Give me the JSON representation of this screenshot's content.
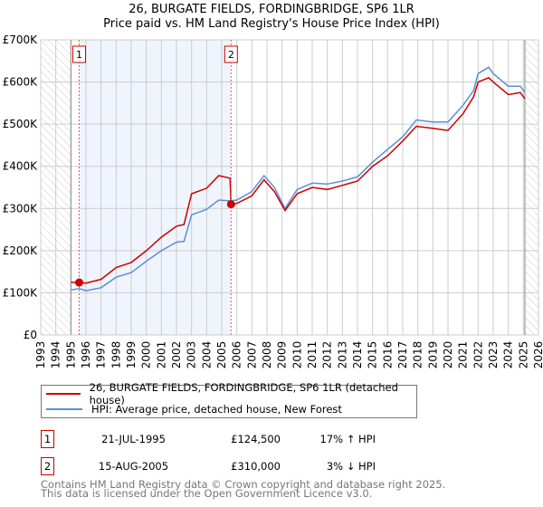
{
  "chart_data": {
    "type": "line",
    "title": "26, BURGATE FIELDS, FORDINGBRIDGE, SP6 1LR",
    "subtitle": "Price paid vs. HM Land Registry's House Price Index (HPI)",
    "xlim": [
      1993,
      2026
    ],
    "ylim": [
      0,
      700000
    ],
    "x_ticks": [
      "1993",
      "1994",
      "1995",
      "1996",
      "1997",
      "1998",
      "1999",
      "2000",
      "2001",
      "2002",
      "2003",
      "2004",
      "2005",
      "2006",
      "2007",
      "2008",
      "2009",
      "2010",
      "2011",
      "2012",
      "2013",
      "2014",
      "2015",
      "2016",
      "2017",
      "2018",
      "2019",
      "2020",
      "2021",
      "2022",
      "2023",
      "2024",
      "2025",
      "2026"
    ],
    "y_ticks": [
      {
        "v": 0,
        "label": "£0"
      },
      {
        "v": 100000,
        "label": "£100K"
      },
      {
        "v": 200000,
        "label": "£200K"
      },
      {
        "v": 300000,
        "label": "£300K"
      },
      {
        "v": 400000,
        "label": "£400K"
      },
      {
        "v": 500000,
        "label": "£500K"
      },
      {
        "v": 600000,
        "label": "£600K"
      },
      {
        "v": 700000,
        "label": "£700K"
      }
    ],
    "grid": true,
    "series": [
      {
        "name": "26, BURGATE FIELDS, FORDINGBRIDGE, SP6 1LR (detached house)",
        "color": "#cc0000",
        "x": [
          1995.0,
          1995.55,
          1996,
          1997,
          1998,
          1999,
          2000,
          2001,
          2002,
          2002.5,
          2003,
          2004,
          2004.8,
          2005.55,
          2005.62,
          2006,
          2007,
          2007.8,
          2008.5,
          2009.2,
          2010,
          2011,
          2012,
          2013,
          2014,
          2015,
          2016,
          2017,
          2017.9,
          2019,
          2020,
          2021,
          2021.7,
          2022,
          2022.7,
          2023,
          2024,
          2024.8,
          2025.1
        ],
        "y": [
          125000,
          124500,
          123000,
          132000,
          160000,
          172000,
          200000,
          232000,
          258000,
          262000,
          335000,
          348000,
          378000,
          372000,
          310000,
          312000,
          330000,
          368000,
          340000,
          295000,
          335000,
          350000,
          345000,
          355000,
          365000,
          400000,
          425000,
          460000,
          495000,
          490000,
          485000,
          525000,
          565000,
          600000,
          610000,
          600000,
          570000,
          575000,
          560000
        ]
      },
      {
        "name": "HPI: Average price, detached house, New Forest",
        "color": "#5b8fd6",
        "x": [
          1995.0,
          1995.55,
          1996,
          1997,
          1998,
          1999,
          2000,
          2001,
          2002,
          2002.5,
          2003,
          2004,
          2004.8,
          2005.55,
          2006,
          2007,
          2007.8,
          2008.5,
          2009.2,
          2010,
          2011,
          2012,
          2013,
          2014,
          2015,
          2016,
          2017,
          2017.9,
          2019,
          2020,
          2021,
          2021.7,
          2022,
          2022.7,
          2023,
          2024,
          2024.8,
          2025.1
        ],
        "y": [
          107000,
          110000,
          105000,
          112000,
          137000,
          148000,
          175000,
          200000,
          220000,
          222000,
          285000,
          298000,
          320000,
          318000,
          320000,
          340000,
          378000,
          350000,
          300000,
          345000,
          360000,
          358000,
          365000,
          375000,
          410000,
          440000,
          470000,
          510000,
          505000,
          505000,
          545000,
          580000,
          620000,
          635000,
          620000,
          590000,
          590000,
          575000
        ]
      }
    ],
    "annotations": [
      {
        "label": "1",
        "x": 1995.55,
        "y": 124500
      },
      {
        "label": "2",
        "x": 2005.62,
        "y": 310000
      }
    ],
    "legend": "bottom"
  },
  "transactions": [
    {
      "num": "1",
      "date": "21-JUL-1995",
      "price": "£124,500",
      "hpi": "17% ↑ HPI"
    },
    {
      "num": "2",
      "date": "15-AUG-2005",
      "price": "£310,000",
      "hpi": "3% ↓ HPI"
    }
  ],
  "footer": {
    "line1": "Contains HM Land Registry data © Crown copyright and database right 2025.",
    "line2": "This data is licensed under the Open Government Licence v3.0."
  }
}
